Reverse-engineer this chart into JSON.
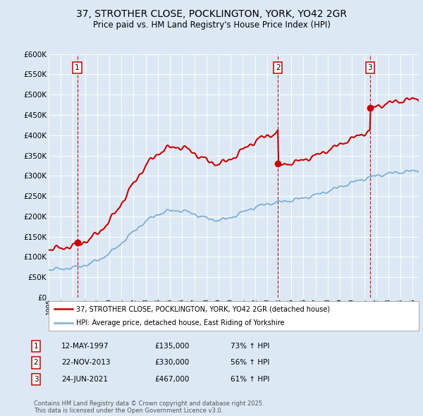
{
  "title_line1": "37, STROTHER CLOSE, POCKLINGTON, YORK, YO42 2GR",
  "title_line2": "Price paid vs. HM Land Registry's House Price Index (HPI)",
  "bg_color": "#dce9f5",
  "grid_color": "#ffffff",
  "sale_dates_year": [
    1997.36,
    2013.89,
    2021.48
  ],
  "sale_prices": [
    135000,
    330000,
    467000
  ],
  "sale_labels": [
    "1",
    "2",
    "3"
  ],
  "sale_info": [
    [
      "1",
      "12-MAY-1997",
      "£135,000",
      "73% ↑ HPI"
    ],
    [
      "2",
      "22-NOV-2013",
      "£330,000",
      "56% ↑ HPI"
    ],
    [
      "3",
      "24-JUN-2021",
      "£467,000",
      "61% ↑ HPI"
    ]
  ],
  "legend_line1": "37, STROTHER CLOSE, POCKLINGTON, YORK, YO42 2GR (detached house)",
  "legend_line2": "HPI: Average price, detached house, East Riding of Yorkshire",
  "footer": "Contains HM Land Registry data © Crown copyright and database right 2025.\nThis data is licensed under the Open Government Licence v3.0.",
  "price_color": "#cc0000",
  "hpi_color": "#7bafd4",
  "ylim": [
    0,
    600000
  ],
  "xlim": [
    1995,
    2025.5
  ]
}
